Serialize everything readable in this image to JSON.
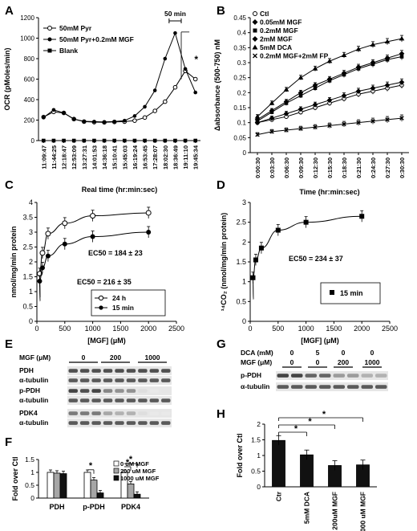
{
  "panels": {
    "A": {
      "letter": "A"
    },
    "B": {
      "letter": "B"
    },
    "C": {
      "letter": "C"
    },
    "D": {
      "letter": "D"
    },
    "E": {
      "letter": "E",
      "mgf_label": "MGF (μM)",
      "doses": [
        "0",
        "200",
        "1000"
      ],
      "blot_rows": [
        "PDH",
        "α-tubulin",
        "p-PDH",
        "α-tubulin",
        "PDK4",
        "α-tubulin"
      ]
    },
    "F": {
      "letter": "F"
    },
    "G": {
      "letter": "G",
      "dca_label": "DCA (mM)",
      "mgf_label": "MGF (μM)",
      "dca_values": [
        "0",
        "5",
        "0",
        "0"
      ],
      "mgf_values": [
        "0",
        "0",
        "200",
        "1000"
      ],
      "blot_rows": [
        "p-PDH",
        "α-tubulin"
      ]
    },
    "H": {
      "letter": "H"
    }
  },
  "chart_data": [
    {
      "panel": "A",
      "type": "line",
      "xlabel": "Real time (hr:min:sec)",
      "ylabel": "OCR (pMoles/min)",
      "ylim": [
        0,
        1200
      ],
      "yticks": [
        "0",
        "200",
        "400",
        "600",
        "800",
        "1000",
        "1200"
      ],
      "categories": [
        "11:09:47",
        "11:44:25",
        "12:18:47",
        "12:53:09",
        "13:27:31",
        "14:01:53",
        "14:36:18",
        "15:10:41",
        "15:45:03",
        "16:19:24",
        "16:53:45",
        "17:28:07",
        "18:02:30",
        "18:36:49",
        "19:11:10",
        "19:45:34"
      ],
      "annotations": [
        "50 min",
        "*"
      ],
      "series": [
        {
          "name": "50mM Pyr",
          "marker": "open-circle",
          "values": [
            230,
            280,
            270,
            210,
            185,
            180,
            178,
            182,
            185,
            195,
            225,
            290,
            380,
            520,
            680,
            600
          ]
        },
        {
          "name": "50mM Pyr+0.2mM MGF",
          "marker": "filled-circle",
          "values": [
            225,
            300,
            270,
            210,
            188,
            185,
            182,
            186,
            195,
            240,
            330,
            490,
            800,
            1050,
            700,
            470
          ]
        },
        {
          "name": "Blank",
          "marker": "filled-square",
          "values": [
            0,
            0,
            0,
            0,
            0,
            0,
            0,
            0,
            0,
            0,
            0,
            0,
            0,
            0,
            0,
            0
          ]
        }
      ]
    },
    {
      "panel": "B",
      "type": "line",
      "xlabel": "Time (hr:min:sec)",
      "ylabel": "Δabsorbance (500-750) nM",
      "ylim": [
        0,
        0.45
      ],
      "yticks": [
        "0",
        "0.05",
        "0.1",
        "0.15",
        "0.2",
        "0.25",
        "0.3",
        "0.35",
        "0.4",
        "0.45"
      ],
      "categories": [
        "0:00:30",
        "0:03:30",
        "0:06:30",
        "0:09:30",
        "0:12:30",
        "0:15:30",
        "0:18:30",
        "0:21:30",
        "0:24:30",
        "0:27:30",
        "0:30:30"
      ],
      "series": [
        {
          "name": "Ctl",
          "marker": "open-circle",
          "values": [
            0.1,
            0.11,
            0.12,
            0.135,
            0.15,
            0.165,
            0.18,
            0.195,
            0.205,
            0.215,
            0.225
          ]
        },
        {
          "name": "0.05mM MGF",
          "marker": "filled-diamond",
          "values": [
            0.1,
            0.115,
            0.13,
            0.145,
            0.16,
            0.175,
            0.19,
            0.205,
            0.215,
            0.225,
            0.235
          ]
        },
        {
          "name": "0.2mM MGF",
          "marker": "filled-square",
          "values": [
            0.105,
            0.135,
            0.165,
            0.19,
            0.215,
            0.24,
            0.26,
            0.28,
            0.295,
            0.31,
            0.32
          ]
        },
        {
          "name": "2mM MGF",
          "marker": "filled-diamond",
          "values": [
            0.11,
            0.14,
            0.17,
            0.2,
            0.225,
            0.245,
            0.265,
            0.285,
            0.3,
            0.315,
            0.33
          ]
        },
        {
          "name": "5mM DCA",
          "marker": "triangle",
          "values": [
            0.12,
            0.165,
            0.21,
            0.25,
            0.28,
            0.305,
            0.325,
            0.345,
            0.36,
            0.37,
            0.38
          ]
        },
        {
          "name": "0.2mM MGF+2mM FP",
          "marker": "cross",
          "values": [
            0.06,
            0.07,
            0.075,
            0.08,
            0.085,
            0.09,
            0.095,
            0.1,
            0.105,
            0.11,
            0.115
          ]
        }
      ]
    },
    {
      "panel": "C",
      "type": "scatter",
      "xlabel": "[MGF] (μM)",
      "ylabel": "nmol/mg/min protein",
      "xlim": [
        0,
        2500
      ],
      "ylim": [
        0,
        4
      ],
      "xticks": [
        "0",
        "500",
        "1000",
        "1500",
        "2000",
        "2500"
      ],
      "yticks": [
        "0",
        "0.5",
        "1",
        "1.5",
        "2",
        "2.5",
        "3",
        "3.5",
        "4"
      ],
      "annotations": [
        "EC50 = 184 ± 23",
        "EC50 = 216 ± 35"
      ],
      "series": [
        {
          "name": "24 h",
          "marker": "open-circle",
          "x": [
            50,
            100,
            200,
            500,
            1000,
            2000
          ],
          "y": [
            1.6,
            2.3,
            2.95,
            3.3,
            3.55,
            3.65
          ]
        },
        {
          "name": "15 min",
          "marker": "filled-circle",
          "x": [
            50,
            100,
            200,
            500,
            1000,
            2000
          ],
          "y": [
            1.35,
            1.8,
            2.2,
            2.6,
            2.85,
            3.0
          ]
        }
      ]
    },
    {
      "panel": "D",
      "type": "scatter",
      "xlabel": "[MGF] (μM)",
      "ylabel": "¹⁴CO₂ (nmol/mg/min protein)",
      "xlim": [
        0,
        2500
      ],
      "ylim": [
        0,
        3
      ],
      "xticks": [
        "0",
        "500",
        "1000",
        "1500",
        "2000",
        "2500"
      ],
      "yticks": [
        "0",
        "0.5",
        "1",
        "1.5",
        "2",
        "2.5",
        "3"
      ],
      "annotations": [
        "EC50 = 234 ± 37"
      ],
      "series": [
        {
          "name": "15 min",
          "marker": "filled-square",
          "x": [
            50,
            100,
            200,
            500,
            1000,
            2000
          ],
          "y": [
            1.1,
            1.55,
            1.85,
            2.3,
            2.5,
            2.65
          ]
        }
      ]
    },
    {
      "panel": "F",
      "type": "bar",
      "ylabel": "Fold over Ctl",
      "ylim": [
        0,
        1.5
      ],
      "yticks": [
        "0",
        "0.5",
        "1",
        "1.5"
      ],
      "categories": [
        "PDH",
        "p-PDH",
        "PDK4"
      ],
      "annotations": [
        "*",
        "*",
        "*"
      ],
      "series": [
        {
          "name": "0 uM MGF",
          "values": [
            1.0,
            1.0,
            1.0
          ]
        },
        {
          "name": "200 uM MGF",
          "values": [
            0.97,
            0.7,
            0.55
          ]
        },
        {
          "name": "1000 uM MGF",
          "values": [
            0.95,
            0.2,
            0.15
          ]
        }
      ]
    },
    {
      "panel": "H",
      "type": "bar",
      "ylabel": "Fold over Ctl",
      "ylim": [
        0,
        2
      ],
      "yticks": [
        "0",
        "0.5",
        "1",
        "1.5",
        "2"
      ],
      "categories": [
        "Ctr",
        "5mM DCA",
        "200uM MGF",
        "1000 uM MGF"
      ],
      "annotations": [
        "*",
        "*",
        "*"
      ],
      "series": [
        {
          "values": [
            1.48,
            1.02,
            0.68,
            0.7
          ]
        }
      ]
    }
  ]
}
